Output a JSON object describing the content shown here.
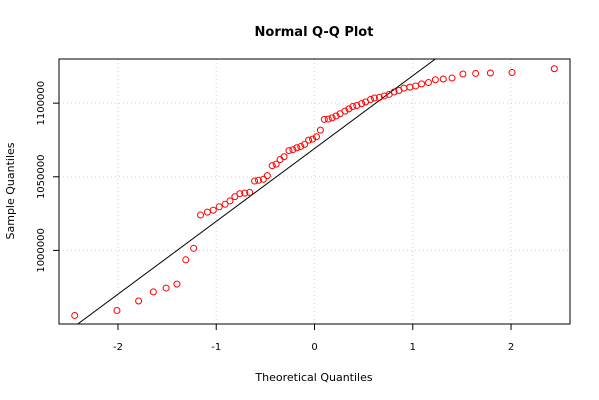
{
  "chart_data": {
    "type": "scatter",
    "title": "Normal Q-Q Plot",
    "xlabel": "Theoretical Quantiles",
    "ylabel": "Sample Quantiles",
    "xlim": [
      -2.6,
      2.6
    ],
    "ylim": [
      950000,
      1130000
    ],
    "x_ticks": [
      -2,
      -1,
      0,
      1,
      2
    ],
    "x_tick_labels": [
      "-2",
      "-1",
      "0",
      "1",
      "2"
    ],
    "y_ticks": [
      1000000,
      1050000,
      1100000
    ],
    "y_tick_labels": [
      "1000000",
      "1050000",
      "1100000"
    ],
    "grid": true,
    "legend": "none",
    "colors": {
      "points": "#ff0000",
      "line": "#000000",
      "grid": "#d3d3d3",
      "axes": "#000000"
    },
    "reference_line": {
      "points": [
        [
          -2.5,
          945500
        ],
        [
          1.25,
          1131000
        ]
      ]
    },
    "series": [
      {
        "x": [
          -2.44,
          -2.01,
          -1.79,
          -1.64,
          -1.51,
          -1.4,
          -1.31,
          -1.23,
          -1.16,
          -1.09,
          -1.03,
          -0.97,
          -0.91,
          -0.86,
          -0.81,
          -0.76,
          -0.71,
          -0.66,
          -0.61,
          -0.57,
          -0.52,
          -0.48,
          -0.43,
          -0.39,
          -0.35,
          -0.31,
          -0.26,
          -0.22,
          -0.18,
          -0.14,
          -0.1,
          -0.06,
          -0.02,
          0.02,
          0.06,
          0.1,
          0.14,
          0.18,
          0.22,
          0.26,
          0.31,
          0.35,
          0.39,
          0.43,
          0.48,
          0.52,
          0.57,
          0.61,
          0.66,
          0.71,
          0.76,
          0.81,
          0.86,
          0.91,
          0.97,
          1.03,
          1.09,
          1.16,
          1.23,
          1.31,
          1.4,
          1.51,
          1.64,
          1.79,
          2.01,
          2.44
        ],
        "y": [
          955800,
          959200,
          965600,
          971800,
          974400,
          977100,
          993600,
          1001400,
          1024000,
          1026000,
          1027300,
          1029600,
          1031300,
          1033600,
          1036500,
          1038500,
          1038900,
          1039400,
          1047100,
          1047600,
          1048300,
          1050800,
          1057600,
          1058600,
          1061700,
          1063600,
          1067800,
          1068400,
          1069700,
          1070600,
          1072000,
          1074900,
          1075600,
          1077200,
          1081700,
          1089000,
          1089200,
          1090000,
          1091300,
          1092800,
          1094600,
          1096100,
          1097700,
          1098400,
          1099700,
          1100800,
          1102500,
          1103500,
          1103900,
          1104900,
          1106000,
          1107600,
          1108600,
          1110200,
          1110900,
          1111700,
          1113100,
          1114000,
          1115900,
          1116400,
          1117100,
          1119800,
          1120200,
          1120500,
          1120800,
          1123400
        ]
      }
    ]
  }
}
